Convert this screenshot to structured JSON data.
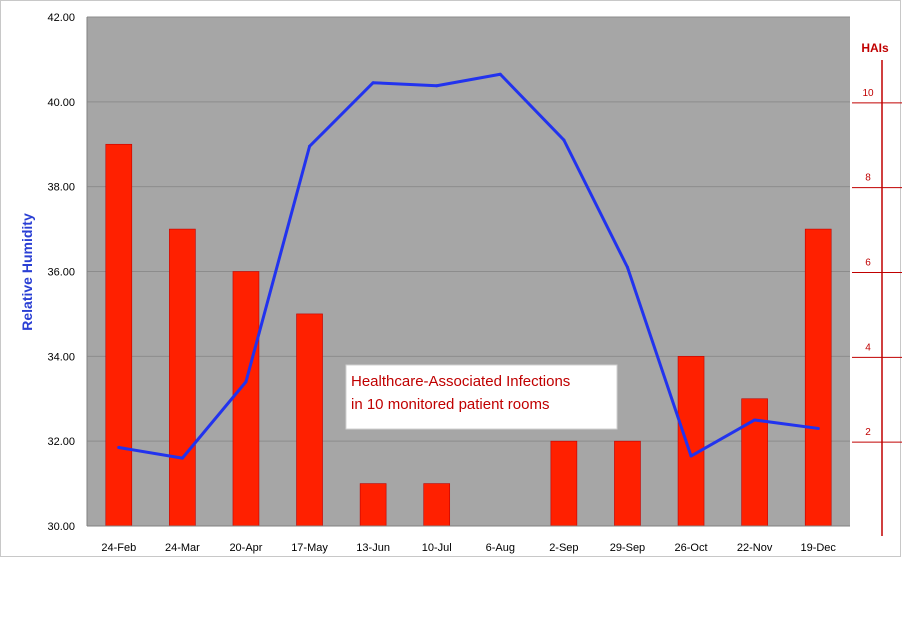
{
  "chart_data": {
    "type": "bar+line",
    "categories": [
      "24-Feb",
      "24-Mar",
      "20-Apr",
      "17-May",
      "13-Jun",
      "10-Jul",
      "6-Aug",
      "2-Sep",
      "29-Sep",
      "26-Oct",
      "22-Nov",
      "19-Dec"
    ],
    "series": [
      {
        "name": "HAIs",
        "type": "bar",
        "axis": "right",
        "color": "#ff2000",
        "values": [
          9,
          7,
          6,
          5,
          1,
          1,
          0,
          2,
          2,
          4,
          3,
          7
        ]
      },
      {
        "type": "line",
        "axis": "left",
        "color": "#2233ee",
        "values": [
          31.85,
          31.6,
          33.4,
          38.95,
          40.45,
          40.38,
          40.65,
          39.1,
          36.1,
          31.65,
          32.5,
          32.3
        ]
      }
    ],
    "ylabel": "Relative Humidity",
    "ylim": [
      30,
      42
    ],
    "yticks": [
      "30.00",
      "32.00",
      "34.00",
      "36.00",
      "38.00",
      "40.00",
      "42.00"
    ],
    "y2label": "HAIs",
    "y2lim": [
      0,
      12
    ],
    "y2ticks": [
      "2",
      "4",
      "6",
      "8",
      "10"
    ],
    "annotation": [
      "Healthcare-Associated Infections",
      "in 10 monitored  patient rooms"
    ],
    "plot_background": "#a6a6a6",
    "grid": true
  }
}
